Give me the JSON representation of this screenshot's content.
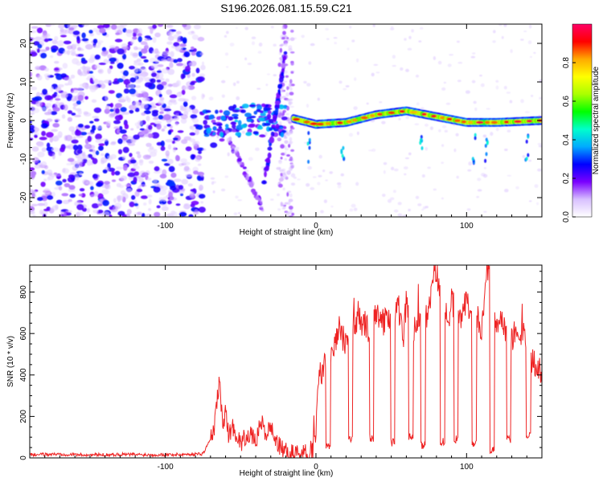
{
  "chart_data": [
    {
      "type": "heatmap",
      "panel": "spectrogram",
      "title": "S196.2026.081.15.59.C21",
      "xlabel": "Height of straight line (km)",
      "ylabel": "Frequency (Hz)",
      "xlim": [
        -190,
        150
      ],
      "ylim": [
        -25,
        25
      ],
      "xticks": [
        -100,
        0,
        100
      ],
      "yticks": [
        -20,
        -10,
        0,
        10,
        20
      ],
      "xticklabels": [
        "-100",
        "0",
        "100"
      ],
      "yticklabels": [
        "-20",
        "-10",
        "0",
        "10",
        "20"
      ],
      "colorbar": {
        "label": "Normalized spectral amplitude",
        "range": [
          0,
          1
        ],
        "ticks": [
          0.0,
          0.2,
          0.4,
          0.6,
          0.8
        ],
        "ticklabels": [
          "0.0",
          "0.2",
          "0.4",
          "0.6",
          "0.8"
        ],
        "colors": [
          "#ffffff",
          "#d8c0ff",
          "#7a00ff",
          "#0000ff",
          "#00aaff",
          "#00ffcc",
          "#00ff00",
          "#aaff00",
          "#ffff00",
          "#ffaa00",
          "#ff0000",
          "#ff0066"
        ]
      },
      "features": [
        {
          "name": "noise",
          "x_range": [
            -190,
            -75
          ],
          "y_range": [
            -25,
            25
          ],
          "amplitude": 0.15
        },
        {
          "name": "line-onset",
          "x_range": [
            -75,
            -20
          ],
          "y_center": 0,
          "amplitude": 0.3
        },
        {
          "name": "diagonal-streak",
          "x": [
            -35,
            -20
          ],
          "y": [
            -18,
            18
          ],
          "amplitude": 0.25
        },
        {
          "name": "carrier-line",
          "x": [
            -15,
            0,
            20,
            40,
            60,
            80,
            100,
            120,
            150
          ],
          "y": [
            0.5,
            -1,
            -0.5,
            1.5,
            2.5,
            1.0,
            -0.5,
            -0.5,
            0
          ],
          "amplitude": 0.95
        }
      ]
    },
    {
      "type": "line",
      "panel": "snr",
      "xlabel": "Height of straight line (km)",
      "ylabel": "SNR (10 * v/v)",
      "xlim": [
        -190,
        150
      ],
      "ylim": [
        0,
        930
      ],
      "xticks": [
        -100,
        0,
        100
      ],
      "yticks": [
        0,
        200,
        400,
        600,
        800
      ],
      "xticklabels": [
        "-100",
        "0",
        "100"
      ],
      "yticklabels": [
        "0",
        "200",
        "400",
        "600",
        "800"
      ],
      "color": "#ee2222",
      "series": [
        {
          "name": "SNR",
          "x": [
            -190,
            -170,
            -150,
            -130,
            -110,
            -90,
            -75,
            -68,
            -64,
            -62,
            -60,
            -58,
            -55,
            -50,
            -45,
            -40,
            -36,
            -34,
            -30,
            -25,
            -20,
            -15,
            -10,
            -5,
            -2,
            0,
            2,
            5,
            8,
            10,
            15,
            20,
            25,
            30,
            35,
            40,
            45,
            48,
            50,
            55,
            58,
            60,
            65,
            68,
            70,
            72,
            75,
            78,
            80,
            82,
            85,
            88,
            90,
            92,
            95,
            100,
            103,
            106,
            110,
            113,
            115,
            118,
            120,
            122,
            125,
            130,
            135,
            138,
            140,
            142,
            145,
            150
          ],
          "y": [
            15,
            18,
            14,
            17,
            15,
            16,
            20,
            120,
            380,
            150,
            230,
            110,
            150,
            70,
            120,
            80,
            180,
            110,
            150,
            60,
            30,
            20,
            30,
            20,
            25,
            130,
            380,
            450,
            520,
            500,
            620,
            560,
            640,
            660,
            620,
            700,
            650,
            680,
            640,
            720,
            590,
            760,
            620,
            700,
            600,
            650,
            700,
            880,
            900,
            780,
            720,
            640,
            800,
            700,
            680,
            740,
            660,
            700,
            600,
            870,
            900,
            720,
            640,
            700,
            620,
            580,
            620,
            600,
            520,
            460,
            440,
            420
          ]
        }
      ],
      "dips": [
        {
          "x": 8,
          "y": 40
        },
        {
          "x": 23,
          "y": 65
        },
        {
          "x": 37,
          "y": 75
        },
        {
          "x": 51,
          "y": 55
        },
        {
          "x": 63,
          "y": 80
        },
        {
          "x": 71,
          "y": 40
        },
        {
          "x": 84,
          "y": 60
        },
        {
          "x": 93,
          "y": 70
        },
        {
          "x": 105,
          "y": 45
        },
        {
          "x": 117,
          "y": 20
        },
        {
          "x": 128,
          "y": 70
        },
        {
          "x": 141,
          "y": 90
        }
      ]
    }
  ]
}
